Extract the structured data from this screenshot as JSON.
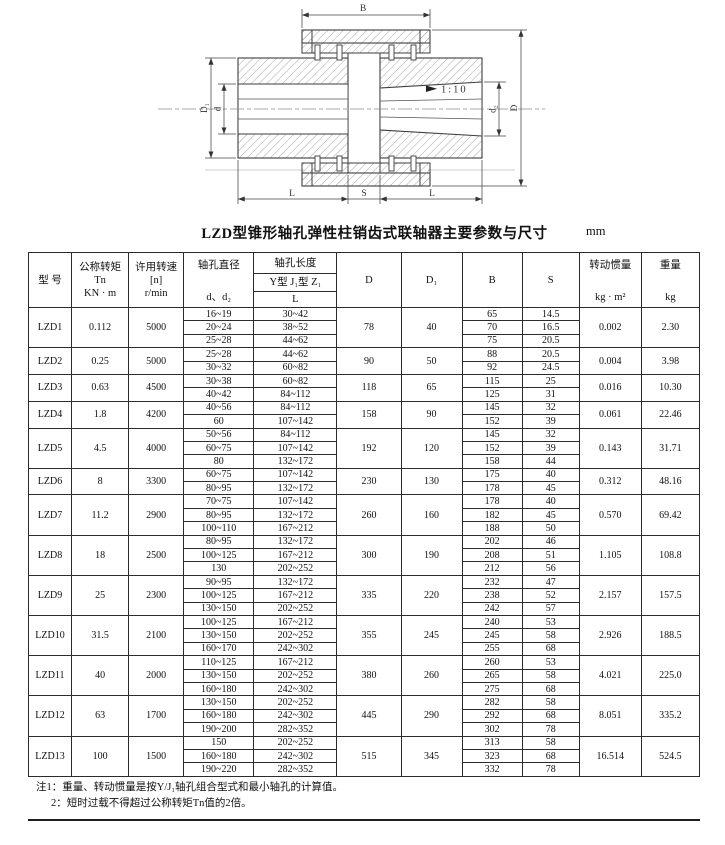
{
  "drawing": {
    "dim_labels": {
      "B": "B",
      "D": "D",
      "D1": "D₁",
      "d": "d",
      "d2": "d₂",
      "taper": "1:10",
      "L_left": "L",
      "S": "S",
      "L_right": "L"
    }
  },
  "title": {
    "text": "LZD型锥形轴孔弹性柱销齿式联轴器主要参数与尺寸",
    "unit": "mm"
  },
  "table": {
    "header": {
      "model": "型  号",
      "torque_line1": "公称转矩",
      "torque_line2": "Tn",
      "torque_line3": "KN · m",
      "speed_line1": "许用转速",
      "speed_line2": "[n]",
      "speed_line3": "r/min",
      "bore_d_line1": "轴孔直径",
      "bore_d_line2": "d、d₂",
      "bore_len_line1": "轴孔长度",
      "bore_len_line2": "Y型  J₁型  Z₁",
      "bore_len_line3": "L",
      "D": "D",
      "D1": "D₁",
      "B": "B",
      "S": "S",
      "inertia_line1": "转动惯量",
      "inertia_line2": "kg · m²",
      "weight_line1": "重量",
      "weight_line2": "kg"
    },
    "groups": [
      {
        "model": "LZD1",
        "torque": "0.112",
        "speed": "5000",
        "D": "78",
        "D1": "40",
        "inertia": "0.002",
        "weight": "2.30",
        "rows": [
          [
            "16~19",
            "30~42",
            "65",
            "14.5"
          ],
          [
            "20~24",
            "38~52",
            "70",
            "16.5"
          ],
          [
            "25~28",
            "44~62",
            "75",
            "20.5"
          ]
        ]
      },
      {
        "model": "LZD2",
        "torque": "0.25",
        "speed": "5000",
        "D": "90",
        "D1": "50",
        "inertia": "0.004",
        "weight": "3.98",
        "rows": [
          [
            "25~28",
            "44~62",
            "88",
            "20.5"
          ],
          [
            "30~32",
            "60~82",
            "92",
            "24.5"
          ]
        ]
      },
      {
        "model": "LZD3",
        "torque": "0.63",
        "speed": "4500",
        "D": "118",
        "D1": "65",
        "inertia": "0.016",
        "weight": "10.30",
        "rows": [
          [
            "30~38",
            "60~82",
            "115",
            "25"
          ],
          [
            "40~42",
            "84~112",
            "125",
            "31"
          ]
        ]
      },
      {
        "model": "LZD4",
        "torque": "1.8",
        "speed": "4200",
        "D": "158",
        "D1": "90",
        "inertia": "0.061",
        "weight": "22.46",
        "rows": [
          [
            "40~56",
            "84~112",
            "145",
            "32"
          ],
          [
            "60",
            "107~142",
            "152",
            "39"
          ]
        ]
      },
      {
        "model": "LZD5",
        "torque": "4.5",
        "speed": "4000",
        "D": "192",
        "D1": "120",
        "inertia": "0.143",
        "weight": "31.71",
        "rows": [
          [
            "50~56",
            "84~112",
            "145",
            "32"
          ],
          [
            "60~75",
            "107~142",
            "152",
            "39"
          ],
          [
            "80",
            "132~172",
            "158",
            "44"
          ]
        ]
      },
      {
        "model": "LZD6",
        "torque": "8",
        "speed": "3300",
        "D": "230",
        "D1": "130",
        "inertia": "0.312",
        "weight": "48.16",
        "rows": [
          [
            "60~75",
            "107~142",
            "175",
            "40"
          ],
          [
            "80~95",
            "132~172",
            "178",
            "45"
          ]
        ]
      },
      {
        "model": "LZD7",
        "torque": "11.2",
        "speed": "2900",
        "D": "260",
        "D1": "160",
        "inertia": "0.570",
        "weight": "69.42",
        "rows": [
          [
            "70~75",
            "107~142",
            "178",
            "40"
          ],
          [
            "80~95",
            "132~172",
            "182",
            "45"
          ],
          [
            "100~110",
            "167~212",
            "188",
            "50"
          ]
        ]
      },
      {
        "model": "LZD8",
        "torque": "18",
        "speed": "2500",
        "D": "300",
        "D1": "190",
        "inertia": "1.105",
        "weight": "108.8",
        "rows": [
          [
            "80~95",
            "132~172",
            "202",
            "46"
          ],
          [
            "100~125",
            "167~212",
            "208",
            "51"
          ],
          [
            "130",
            "202~252",
            "212",
            "56"
          ]
        ]
      },
      {
        "model": "LZD9",
        "torque": "25",
        "speed": "2300",
        "D": "335",
        "D1": "220",
        "inertia": "2.157",
        "weight": "157.5",
        "rows": [
          [
            "90~95",
            "132~172",
            "232",
            "47"
          ],
          [
            "100~125",
            "167~212",
            "238",
            "52"
          ],
          [
            "130~150",
            "202~252",
            "242",
            "57"
          ]
        ]
      },
      {
        "model": "LZD10",
        "torque": "31.5",
        "speed": "2100",
        "D": "355",
        "D1": "245",
        "inertia": "2.926",
        "weight": "188.5",
        "rows": [
          [
            "100~125",
            "167~212",
            "240",
            "53"
          ],
          [
            "130~150",
            "202~252",
            "245",
            "58"
          ],
          [
            "160~170",
            "242~302",
            "255",
            "68"
          ]
        ]
      },
      {
        "model": "LZD11",
        "torque": "40",
        "speed": "2000",
        "D": "380",
        "D1": "260",
        "inertia": "4.021",
        "weight": "225.0",
        "rows": [
          [
            "110~125",
            "167~212",
            "260",
            "53"
          ],
          [
            "130~150",
            "202~252",
            "265",
            "58"
          ],
          [
            "160~180",
            "242~302",
            "275",
            "68"
          ]
        ]
      },
      {
        "model": "LZD12",
        "torque": "63",
        "speed": "1700",
        "D": "445",
        "D1": "290",
        "inertia": "8.051",
        "weight": "335.2",
        "rows": [
          [
            "130~150",
            "202~252",
            "282",
            "58"
          ],
          [
            "160~180",
            "242~302",
            "292",
            "68"
          ],
          [
            "190~200",
            "282~352",
            "302",
            "78"
          ]
        ]
      },
      {
        "model": "LZD13",
        "torque": "100",
        "speed": "1500",
        "D": "515",
        "D1": "345",
        "inertia": "16.514",
        "weight": "524.5",
        "rows": [
          [
            "150",
            "202~252",
            "313",
            "58"
          ],
          [
            "160~180",
            "242~302",
            "323",
            "68"
          ],
          [
            "190~220",
            "282~352",
            "332",
            "78"
          ]
        ]
      }
    ]
  },
  "notes": [
    "注1：重量、转动惯量是按Y/J₁轴孔组合型式和最小轴孔的计算值。",
    "2：短时过载不得超过公称转矩Tn值的2倍。"
  ]
}
